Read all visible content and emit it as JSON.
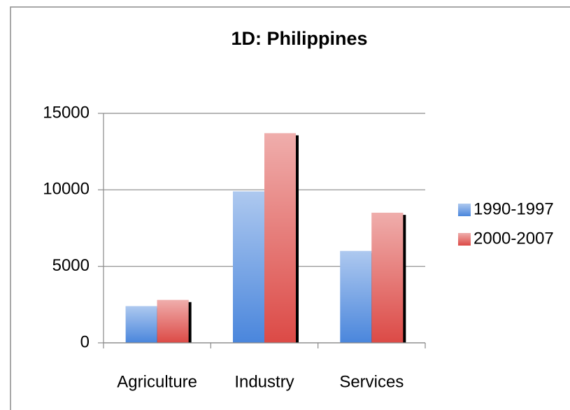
{
  "chart_data": {
    "type": "bar",
    "title": "1D: Philippines",
    "categories": [
      "Agriculture",
      "Industry",
      "Services"
    ],
    "series": [
      {
        "name": "1990-1997",
        "color": "#4a86dc",
        "values": [
          2400,
          9900,
          6000
        ]
      },
      {
        "name": "2000-2007",
        "color": "#dc4a46",
        "values": [
          2800,
          13700,
          8500
        ]
      }
    ],
    "ylim": [
      0,
      15000
    ],
    "yticks": [
      0,
      5000,
      10000,
      15000
    ],
    "grid": true,
    "legend": "right"
  }
}
